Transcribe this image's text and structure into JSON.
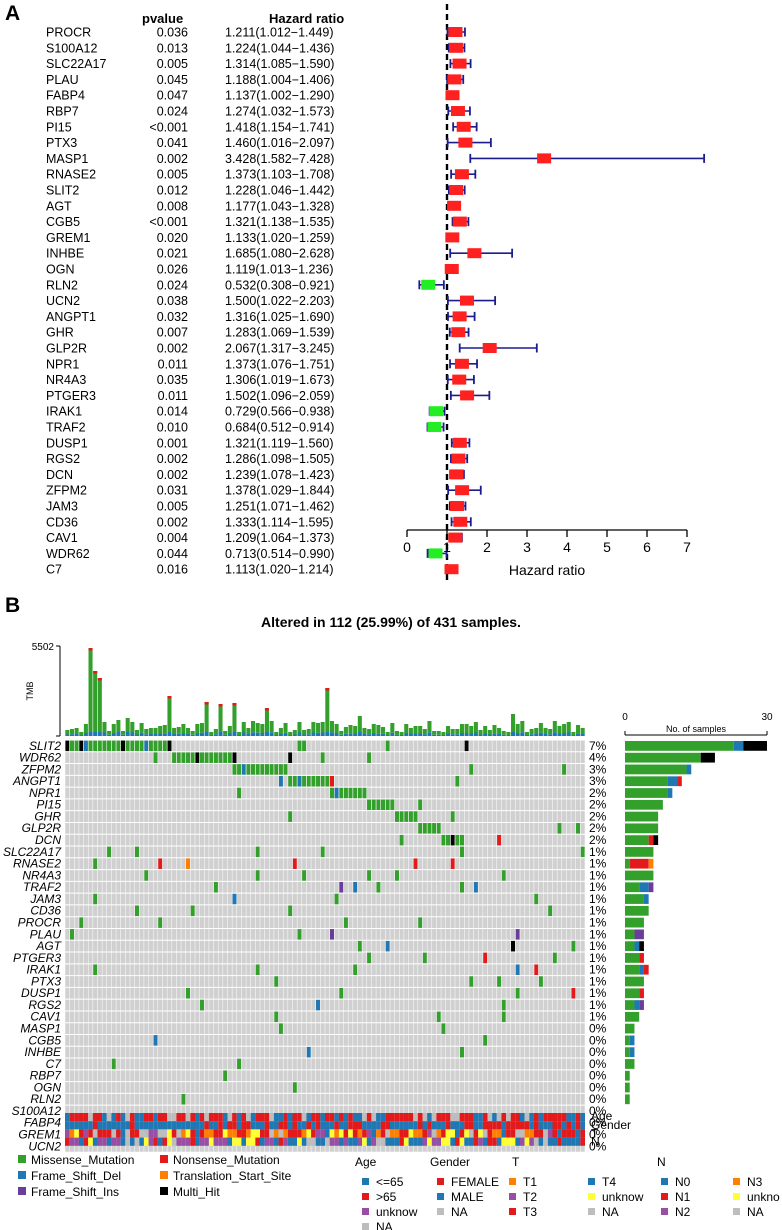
{
  "panels": {
    "a": "A",
    "b": "B"
  },
  "colors": {
    "risk": "#ff2020",
    "protective": "#22ee22",
    "whisker": "#1c1c8c",
    "missense": "#33a02c",
    "frame_shift_del": "#1f78b4",
    "frame_shift_ins": "#6a3d9a",
    "nonsense": "#e31a1c",
    "translation_start": "#ff7f00",
    "multi_hit": "#000000",
    "grid_bg": "#d0d0d0"
  },
  "chart_data": [
    {
      "type": "forest",
      "column_headers": {
        "pvalue": "pvalue",
        "hr": "Hazard ratio"
      },
      "xlabel": "Hazard ratio",
      "xlim": [
        0,
        7
      ],
      "xticks": [
        "0",
        "1",
        "2",
        "3",
        "4",
        "5",
        "6",
        "7"
      ],
      "reference_line": 1,
      "rows": [
        {
          "gene": "PROCR",
          "pvalue": "0.036",
          "hr_text": "1.211(1.012−1.449)",
          "hr": 1.211,
          "lo": 1.012,
          "hi": 1.449
        },
        {
          "gene": "S100A12",
          "pvalue": "0.013",
          "hr_text": "1.224(1.044−1.436)",
          "hr": 1.224,
          "lo": 1.044,
          "hi": 1.436
        },
        {
          "gene": "SLC22A17",
          "pvalue": "0.005",
          "hr_text": "1.314(1.085−1.590)",
          "hr": 1.314,
          "lo": 1.085,
          "hi": 1.59
        },
        {
          "gene": "PLAU",
          "pvalue": "0.045",
          "hr_text": "1.188(1.004−1.406)",
          "hr": 1.188,
          "lo": 1.004,
          "hi": 1.406
        },
        {
          "gene": "FABP4",
          "pvalue": "0.047",
          "hr_text": "1.137(1.002−1.290)",
          "hr": 1.137,
          "lo": 1.002,
          "hi": 1.29
        },
        {
          "gene": "RBP7",
          "pvalue": "0.024",
          "hr_text": "1.274(1.032−1.573)",
          "hr": 1.274,
          "lo": 1.032,
          "hi": 1.573
        },
        {
          "gene": "PI15",
          "pvalue": "<0.001",
          "hr_text": "1.418(1.154−1.741)",
          "hr": 1.418,
          "lo": 1.154,
          "hi": 1.741
        },
        {
          "gene": "PTX3",
          "pvalue": "0.041",
          "hr_text": "1.460(1.016−2.097)",
          "hr": 1.46,
          "lo": 1.016,
          "hi": 2.097
        },
        {
          "gene": "MASP1",
          "pvalue": "0.002",
          "hr_text": "3.428(1.582−7.428)",
          "hr": 3.428,
          "lo": 1.582,
          "hi": 7.428
        },
        {
          "gene": "RNASE2",
          "pvalue": "0.005",
          "hr_text": "1.373(1.103−1.708)",
          "hr": 1.373,
          "lo": 1.103,
          "hi": 1.708
        },
        {
          "gene": "SLIT2",
          "pvalue": "0.012",
          "hr_text": "1.228(1.046−1.442)",
          "hr": 1.228,
          "lo": 1.046,
          "hi": 1.442
        },
        {
          "gene": "AGT",
          "pvalue": "0.008",
          "hr_text": "1.177(1.043−1.328)",
          "hr": 1.177,
          "lo": 1.043,
          "hi": 1.328
        },
        {
          "gene": "CGB5",
          "pvalue": "<0.001",
          "hr_text": "1.321(1.138−1.535)",
          "hr": 1.321,
          "lo": 1.138,
          "hi": 1.535
        },
        {
          "gene": "GREM1",
          "pvalue": "0.020",
          "hr_text": "1.133(1.020−1.259)",
          "hr": 1.133,
          "lo": 1.02,
          "hi": 1.259
        },
        {
          "gene": "INHBE",
          "pvalue": "0.021",
          "hr_text": "1.685(1.080−2.628)",
          "hr": 1.685,
          "lo": 1.08,
          "hi": 2.628
        },
        {
          "gene": "OGN",
          "pvalue": "0.026",
          "hr_text": "1.119(1.013−1.236)",
          "hr": 1.119,
          "lo": 1.013,
          "hi": 1.236
        },
        {
          "gene": "RLN2",
          "pvalue": "0.024",
          "hr_text": "0.532(0.308−0.921)",
          "hr": 0.532,
          "lo": 0.308,
          "hi": 0.921
        },
        {
          "gene": "UCN2",
          "pvalue": "0.038",
          "hr_text": "1.500(1.022−2.203)",
          "hr": 1.5,
          "lo": 1.022,
          "hi": 2.203
        },
        {
          "gene": "ANGPT1",
          "pvalue": "0.032",
          "hr_text": "1.316(1.025−1.690)",
          "hr": 1.316,
          "lo": 1.025,
          "hi": 1.69
        },
        {
          "gene": "GHR",
          "pvalue": "0.007",
          "hr_text": "1.283(1.069−1.539)",
          "hr": 1.283,
          "lo": 1.069,
          "hi": 1.539
        },
        {
          "gene": "GLP2R",
          "pvalue": "0.002",
          "hr_text": "2.067(1.317−3.245)",
          "hr": 2.067,
          "lo": 1.317,
          "hi": 3.245
        },
        {
          "gene": "NPR1",
          "pvalue": "0.011",
          "hr_text": "1.373(1.076−1.751)",
          "hr": 1.373,
          "lo": 1.076,
          "hi": 1.751
        },
        {
          "gene": "NR4A3",
          "pvalue": "0.035",
          "hr_text": "1.306(1.019−1.673)",
          "hr": 1.306,
          "lo": 1.019,
          "hi": 1.673
        },
        {
          "gene": "PTGER3",
          "pvalue": "0.011",
          "hr_text": "1.502(1.096−2.059)",
          "hr": 1.502,
          "lo": 1.096,
          "hi": 2.059
        },
        {
          "gene": "IRAK1",
          "pvalue": "0.014",
          "hr_text": "0.729(0.566−0.938)",
          "hr": 0.729,
          "lo": 0.566,
          "hi": 0.938
        },
        {
          "gene": "TRAF2",
          "pvalue": "0.010",
          "hr_text": "0.684(0.512−0.914)",
          "hr": 0.684,
          "lo": 0.512,
          "hi": 0.914
        },
        {
          "gene": "DUSP1",
          "pvalue": "0.001",
          "hr_text": "1.321(1.119−1.560)",
          "hr": 1.321,
          "lo": 1.119,
          "hi": 1.56
        },
        {
          "gene": "RGS2",
          "pvalue": "0.002",
          "hr_text": "1.286(1.098−1.505)",
          "hr": 1.286,
          "lo": 1.098,
          "hi": 1.505
        },
        {
          "gene": "DCN",
          "pvalue": "0.002",
          "hr_text": "1.239(1.078−1.423)",
          "hr": 1.239,
          "lo": 1.078,
          "hi": 1.423
        },
        {
          "gene": "ZFPM2",
          "pvalue": "0.031",
          "hr_text": "1.378(1.029−1.844)",
          "hr": 1.378,
          "lo": 1.029,
          "hi": 1.844
        },
        {
          "gene": "JAM3",
          "pvalue": "0.005",
          "hr_text": "1.251(1.071−1.462)",
          "hr": 1.251,
          "lo": 1.071,
          "hi": 1.462
        },
        {
          "gene": "CD36",
          "pvalue": "0.002",
          "hr_text": "1.333(1.114−1.595)",
          "hr": 1.333,
          "lo": 1.114,
          "hi": 1.595
        },
        {
          "gene": "CAV1",
          "pvalue": "0.004",
          "hr_text": "1.209(1.064−1.373)",
          "hr": 1.209,
          "lo": 1.064,
          "hi": 1.373
        },
        {
          "gene": "WDR62",
          "pvalue": "0.044",
          "hr_text": "0.713(0.514−0.990)",
          "hr": 0.713,
          "lo": 0.514,
          "hi": 0.99
        },
        {
          "gene": "C7",
          "pvalue": "0.016",
          "hr_text": "1.113(1.020−1.214)",
          "hr": 1.113,
          "lo": 1.02,
          "hi": 1.214
        }
      ]
    },
    {
      "type": "oncoplot",
      "title": "Altered in 112 (25.99%) of 431 samples.",
      "tmb_label": "TMB",
      "tmb_max": "5502",
      "side_axis": {
        "label": "No. of samples",
        "min": "0",
        "max": "30",
        "max_value": 30
      },
      "clinical_tracks": [
        "Age",
        "Gender",
        "T",
        "N"
      ],
      "genes": [
        {
          "gene": "SLIT2",
          "pct": "7%",
          "missense": 23,
          "frame_shift_del": 2,
          "nonsense": 0,
          "frame_shift_ins": 0,
          "multi_hit": 5
        },
        {
          "gene": "WDR62",
          "pct": "4%",
          "missense": 16,
          "frame_shift_del": 0,
          "nonsense": 0,
          "frame_shift_ins": 0,
          "multi_hit": 3
        },
        {
          "gene": "ZFPM2",
          "pct": "3%",
          "missense": 13,
          "frame_shift_del": 1,
          "nonsense": 0,
          "frame_shift_ins": 0,
          "multi_hit": 0
        },
        {
          "gene": "ANGPT1",
          "pct": "3%",
          "missense": 9,
          "frame_shift_del": 2,
          "nonsense": 1,
          "frame_shift_ins": 0,
          "multi_hit": 0
        },
        {
          "gene": "NPR1",
          "pct": "2%",
          "missense": 9,
          "frame_shift_del": 1,
          "nonsense": 0,
          "frame_shift_ins": 0,
          "multi_hit": 0
        },
        {
          "gene": "PI15",
          "pct": "2%",
          "missense": 8,
          "frame_shift_del": 0,
          "nonsense": 0,
          "frame_shift_ins": 0,
          "multi_hit": 0
        },
        {
          "gene": "GHR",
          "pct": "2%",
          "missense": 7,
          "frame_shift_del": 0,
          "nonsense": 0,
          "frame_shift_ins": 0,
          "multi_hit": 0
        },
        {
          "gene": "GLP2R",
          "pct": "2%",
          "missense": 7,
          "frame_shift_del": 0,
          "nonsense": 0,
          "frame_shift_ins": 0,
          "multi_hit": 0
        },
        {
          "gene": "DCN",
          "pct": "2%",
          "missense": 5,
          "frame_shift_del": 0,
          "nonsense": 1,
          "frame_shift_ins": 0,
          "multi_hit": 1
        },
        {
          "gene": "SLC22A17",
          "pct": "1%",
          "missense": 6,
          "frame_shift_del": 0,
          "nonsense": 0,
          "frame_shift_ins": 0,
          "multi_hit": 0
        },
        {
          "gene": "RNASE2",
          "pct": "1%",
          "missense": 1,
          "frame_shift_del": 0,
          "nonsense": 4,
          "frame_shift_ins": 0,
          "multi_hit": 0,
          "translation_start": 1
        },
        {
          "gene": "NR4A3",
          "pct": "1%",
          "missense": 6,
          "frame_shift_del": 0,
          "nonsense": 0,
          "frame_shift_ins": 0,
          "multi_hit": 0
        },
        {
          "gene": "TRAF2",
          "pct": "1%",
          "missense": 3,
          "frame_shift_del": 2,
          "nonsense": 0,
          "frame_shift_ins": 1,
          "multi_hit": 0
        },
        {
          "gene": "JAM3",
          "pct": "1%",
          "missense": 4,
          "frame_shift_del": 1,
          "nonsense": 0,
          "frame_shift_ins": 0,
          "multi_hit": 0
        },
        {
          "gene": "CD36",
          "pct": "1%",
          "missense": 5,
          "frame_shift_del": 0,
          "nonsense": 0,
          "frame_shift_ins": 0,
          "multi_hit": 0
        },
        {
          "gene": "PROCR",
          "pct": "1%",
          "missense": 4,
          "frame_shift_del": 0,
          "nonsense": 0,
          "frame_shift_ins": 0,
          "multi_hit": 0
        },
        {
          "gene": "PLAU",
          "pct": "1%",
          "missense": 2,
          "frame_shift_del": 0,
          "nonsense": 0,
          "frame_shift_ins": 2,
          "multi_hit": 0
        },
        {
          "gene": "AGT",
          "pct": "1%",
          "missense": 2,
          "frame_shift_del": 1,
          "nonsense": 0,
          "frame_shift_ins": 0,
          "multi_hit": 1
        },
        {
          "gene": "PTGER3",
          "pct": "1%",
          "missense": 3,
          "frame_shift_del": 0,
          "nonsense": 1,
          "frame_shift_ins": 0,
          "multi_hit": 0
        },
        {
          "gene": "IRAK1",
          "pct": "1%",
          "missense": 3,
          "frame_shift_del": 1,
          "nonsense": 1,
          "frame_shift_ins": 0,
          "multi_hit": 0
        },
        {
          "gene": "PTX3",
          "pct": "1%",
          "missense": 4,
          "frame_shift_del": 0,
          "nonsense": 0,
          "frame_shift_ins": 0,
          "multi_hit": 0
        },
        {
          "gene": "DUSP1",
          "pct": "1%",
          "missense": 3,
          "frame_shift_del": 0,
          "nonsense": 1,
          "frame_shift_ins": 0,
          "multi_hit": 0
        },
        {
          "gene": "RGS2",
          "pct": "1%",
          "missense": 2,
          "frame_shift_del": 1,
          "nonsense": 0,
          "frame_shift_ins": 1,
          "multi_hit": 0
        },
        {
          "gene": "CAV1",
          "pct": "1%",
          "missense": 3,
          "frame_shift_del": 0,
          "nonsense": 0,
          "frame_shift_ins": 0,
          "multi_hit": 0
        },
        {
          "gene": "MASP1",
          "pct": "0%",
          "missense": 2,
          "frame_shift_del": 0,
          "nonsense": 0,
          "frame_shift_ins": 0,
          "multi_hit": 0
        },
        {
          "gene": "CGB5",
          "pct": "0%",
          "missense": 1,
          "frame_shift_del": 1,
          "nonsense": 0,
          "frame_shift_ins": 0,
          "multi_hit": 0
        },
        {
          "gene": "INHBE",
          "pct": "0%",
          "missense": 1,
          "frame_shift_del": 1,
          "nonsense": 0,
          "frame_shift_ins": 0,
          "multi_hit": 0
        },
        {
          "gene": "C7",
          "pct": "0%",
          "missense": 2,
          "frame_shift_del": 0,
          "nonsense": 0,
          "frame_shift_ins": 0,
          "multi_hit": 0
        },
        {
          "gene": "RBP7",
          "pct": "0%",
          "missense": 1,
          "frame_shift_del": 0,
          "nonsense": 0,
          "frame_shift_ins": 0,
          "multi_hit": 0
        },
        {
          "gene": "OGN",
          "pct": "0%",
          "missense": 1,
          "frame_shift_del": 0,
          "nonsense": 0,
          "frame_shift_ins": 0,
          "multi_hit": 0
        },
        {
          "gene": "RLN2",
          "pct": "0%",
          "missense": 1,
          "frame_shift_del": 0,
          "nonsense": 0,
          "frame_shift_ins": 0,
          "multi_hit": 0
        },
        {
          "gene": "S100A12",
          "pct": "0%",
          "missense": 0,
          "frame_shift_del": 0,
          "nonsense": 0,
          "frame_shift_ins": 0,
          "multi_hit": 0
        },
        {
          "gene": "FABP4",
          "pct": "0%",
          "missense": 0,
          "frame_shift_del": 0,
          "nonsense": 0,
          "frame_shift_ins": 0,
          "multi_hit": 0
        },
        {
          "gene": "GREM1",
          "pct": "0%",
          "missense": 0,
          "frame_shift_del": 0,
          "nonsense": 0,
          "frame_shift_ins": 0,
          "multi_hit": 0
        },
        {
          "gene": "UCN2",
          "pct": "0%",
          "missense": 0,
          "frame_shift_del": 0,
          "nonsense": 0,
          "frame_shift_ins": 0,
          "multi_hit": 0
        }
      ]
    }
  ],
  "legend": {
    "mutation_types": [
      {
        "label": "Missense_Mutation",
        "color": "#33a02c"
      },
      {
        "label": "Nonsense_Mutation",
        "color": "#e31a1c"
      },
      {
        "label": "Frame_Shift_Del",
        "color": "#1f78b4"
      },
      {
        "label": "Translation_Start_Site",
        "color": "#ff7f00"
      },
      {
        "label": "Frame_Shift_Ins",
        "color": "#6a3d9a"
      },
      {
        "label": "Multi_Hit",
        "color": "#000000"
      }
    ],
    "age": {
      "title": "Age",
      "items": [
        {
          "label": "<=65",
          "color": "#1f78b4"
        },
        {
          "label": ">65",
          "color": "#e31a1c"
        },
        {
          "label": "unknow",
          "color": "#984ea3"
        },
        {
          "label": "NA",
          "color": "#bdbdbd"
        }
      ]
    },
    "gender": {
      "title": "Gender",
      "items": [
        {
          "label": "FEMALE",
          "color": "#e31a1c"
        },
        {
          "label": "MALE",
          "color": "#1f78b4"
        },
        {
          "label": "NA",
          "color": "#bdbdbd"
        }
      ]
    },
    "t": {
      "title": "T",
      "items": [
        {
          "label": "T1",
          "color": "#ff7f00"
        },
        {
          "label": "T2",
          "color": "#984ea3"
        },
        {
          "label": "T3",
          "color": "#e31a1c"
        },
        {
          "label": "T4",
          "color": "#1f78b4"
        },
        {
          "label": "unknow",
          "color": "#ffff33"
        },
        {
          "label": "NA",
          "color": "#bdbdbd"
        }
      ]
    },
    "n": {
      "title": "N",
      "items": [
        {
          "label": "N0",
          "color": "#1f78b4"
        },
        {
          "label": "N1",
          "color": "#e31a1c"
        },
        {
          "label": "N2",
          "color": "#984ea3"
        },
        {
          "label": "N3",
          "color": "#ff7f00"
        },
        {
          "label": "unkno",
          "color": "#ffff33"
        },
        {
          "label": "NA",
          "color": "#bdbdbd"
        }
      ]
    }
  }
}
